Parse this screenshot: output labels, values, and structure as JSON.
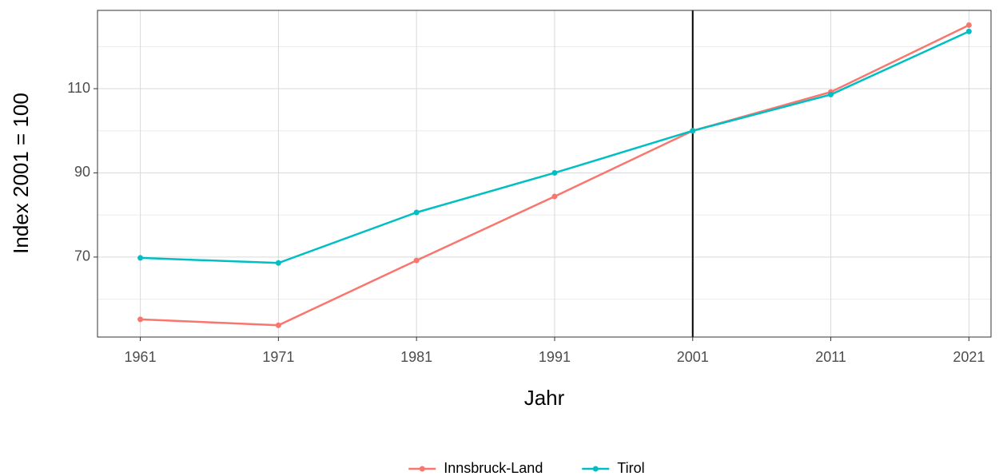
{
  "chart_data": {
    "type": "line",
    "x_label": "Jahr",
    "y_label": "Index 2001 = 100",
    "x": [
      1961,
      1971,
      1981,
      1991,
      2001,
      2011,
      2021
    ],
    "series": [
      {
        "name": "Innsbruck-Land",
        "color": "#F8766D",
        "values": [
          55.2,
          53.8,
          69.2,
          84.4,
          100,
          109.2,
          125.1
        ]
      },
      {
        "name": "Tirol",
        "color": "#00BFC4",
        "values": [
          69.8,
          68.6,
          80.6,
          90.0,
          100,
          108.6,
          123.6
        ]
      }
    ],
    "xlim": [
      1957.9,
      2022.6
    ],
    "xticks": [
      1961,
      1971,
      1981,
      1991,
      2001,
      2011,
      2021
    ],
    "ylim": [
      51.0,
      128.6
    ],
    "yticks": [
      70,
      90,
      110
    ],
    "yminorticks": [
      60,
      80,
      100,
      120
    ],
    "vline": 2001,
    "grid": true,
    "legend": "bottom"
  }
}
